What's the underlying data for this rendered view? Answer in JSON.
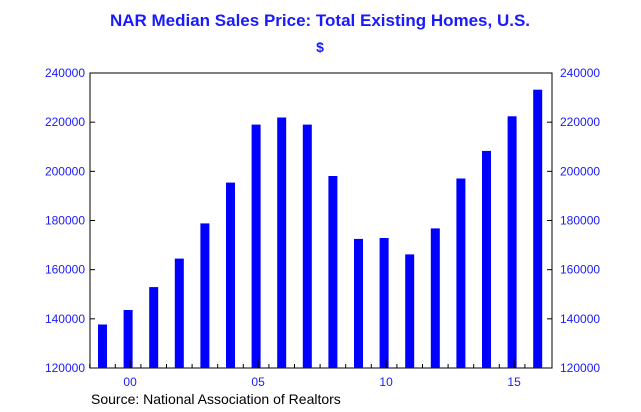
{
  "chart_data": {
    "type": "bar",
    "title": "NAR Median Sales Price: Total Existing Homes, U.S.",
    "subtitle": "$",
    "xlabel": "",
    "ylabel": "",
    "categories": [
      "1999",
      "2000",
      "2001",
      "2002",
      "2003",
      "2004",
      "2005",
      "2006",
      "2007",
      "2008",
      "2009",
      "2010",
      "2011",
      "2012",
      "2013",
      "2014",
      "2015",
      "2016"
    ],
    "x_tick_labels": [
      {
        "label": "00",
        "category": "2000"
      },
      {
        "label": "05",
        "category": "2005"
      },
      {
        "label": "10",
        "category": "2010"
      },
      {
        "label": "15",
        "category": "2015"
      }
    ],
    "series": [
      {
        "name": "Median Sales Price",
        "values": [
          137700,
          143600,
          152900,
          164500,
          178800,
          195400,
          219000,
          221900,
          219000,
          198100,
          172500,
          172900,
          166200,
          176800,
          197100,
          208300,
          222400,
          233200
        ],
        "color": "#0000ff"
      }
    ],
    "ylim": [
      120000,
      240000
    ],
    "yticks": [
      120000,
      140000,
      160000,
      180000,
      200000,
      220000,
      240000
    ],
    "ytick_labels": [
      "120000",
      "140000",
      "160000",
      "180000",
      "200000",
      "220000",
      "240000"
    ],
    "grid": false,
    "legend": "none",
    "axis_color": "#000000",
    "text_color": "#1a1aff",
    "source": "Source:  National Association of Realtors"
  }
}
